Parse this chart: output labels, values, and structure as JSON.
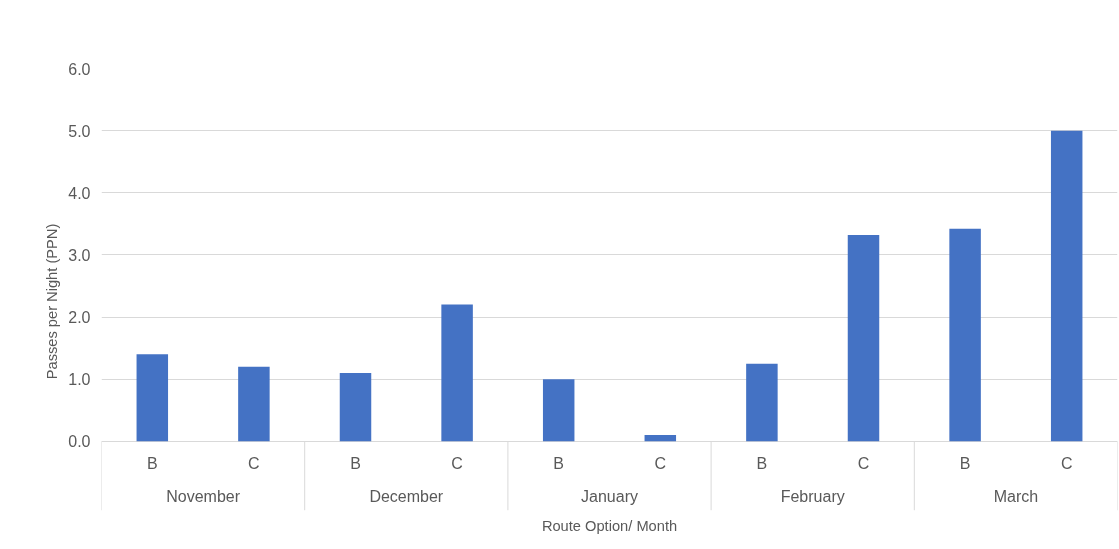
{
  "chart_data": {
    "type": "bar",
    "xlabel": "Route Option/ Month",
    "ylabel": "Passes per Night (PPN)",
    "categories": [
      "B",
      "C",
      "B",
      "C",
      "B",
      "C",
      "B",
      "C",
      "B",
      "C"
    ],
    "annotations": [
      "November",
      "December",
      "January",
      "February",
      "March"
    ],
    "values": [
      1.4,
      1.2,
      1.1,
      2.2,
      1.0,
      0.1,
      1.25,
      3.32,
      3.42,
      5.0
    ],
    "color": "#4472c4",
    "ylim": [
      0,
      6
    ],
    "yticks": [
      {
        "value": 0,
        "label": "0.0"
      },
      {
        "value": 1,
        "label": "1.0"
      },
      {
        "value": 2,
        "label": "2.0"
      },
      {
        "value": 3,
        "label": "3.0"
      },
      {
        "value": 4,
        "label": "4.0"
      },
      {
        "value": 5,
        "label": "5.0"
      },
      {
        "value": 6,
        "label": "6.0"
      }
    ],
    "grid": "y"
  }
}
